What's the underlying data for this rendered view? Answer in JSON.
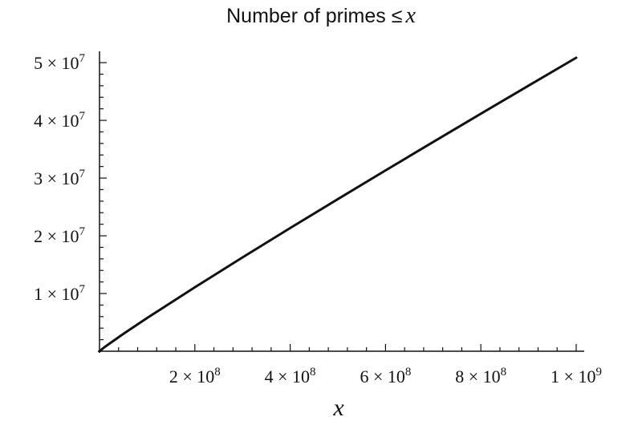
{
  "chart_data": {
    "type": "line",
    "title": "Number of primes ≤",
    "title_var": "x",
    "xlabel": "x",
    "ylabel": "",
    "xlim": [
      0,
      1000000000
    ],
    "ylim": [
      0,
      50847534
    ],
    "grid": false,
    "x_ticks": [
      {
        "value": 200000000,
        "mantissa": "2",
        "exp": "8"
      },
      {
        "value": 400000000,
        "mantissa": "4",
        "exp": "8"
      },
      {
        "value": 600000000,
        "mantissa": "6",
        "exp": "8"
      },
      {
        "value": 800000000,
        "mantissa": "8",
        "exp": "8"
      },
      {
        "value": 1000000000,
        "mantissa": "1",
        "exp": "9"
      }
    ],
    "y_ticks": [
      {
        "value": 10000000,
        "mantissa": "1",
        "exp": "7"
      },
      {
        "value": 20000000,
        "mantissa": "2",
        "exp": "7"
      },
      {
        "value": 30000000,
        "mantissa": "3",
        "exp": "7"
      },
      {
        "value": 40000000,
        "mantissa": "4",
        "exp": "7"
      },
      {
        "value": 50000000,
        "mantissa": "5",
        "exp": "7"
      }
    ],
    "series": [
      {
        "x": [
          0,
          10000000,
          20000000,
          50000000,
          100000000,
          200000000,
          300000000,
          400000000,
          500000000,
          600000000,
          700000000,
          800000000,
          900000000,
          1000000000
        ],
        "values": [
          0,
          664579,
          1270607,
          3001134,
          5761455,
          11078937,
          16252325,
          21336326,
          26355867,
          31324703,
          36252931,
          41146179,
          46009215,
          50847534
        ]
      }
    ]
  }
}
